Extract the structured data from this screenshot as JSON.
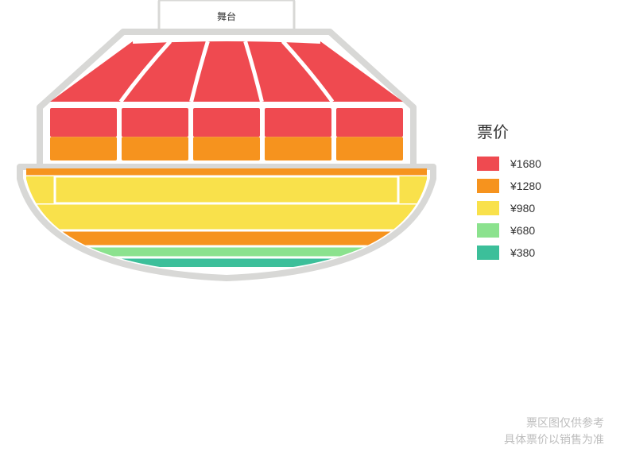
{
  "stage": {
    "label": "舞台"
  },
  "legend": {
    "title": "票价",
    "items": [
      {
        "color": "#ef4a50",
        "label": "¥1680"
      },
      {
        "color": "#f6931e",
        "label": "¥1280"
      },
      {
        "color": "#f9e14b",
        "label": "¥980"
      },
      {
        "color": "#8be28e",
        "label": "¥680"
      },
      {
        "color": "#3cbf9a",
        "label": "¥380"
      }
    ]
  },
  "seatmap": {
    "outline_color": "#d8d8d6",
    "gap_color": "#ffffff",
    "stage_fill": "#ffffff",
    "stage_border": "#d8d8d6",
    "stage_text_color": "#333333",
    "front_block": {
      "fill": "#ef4a50",
      "wedges": 5
    },
    "mid_blocks": {
      "top_fill": "#ef4a50",
      "bottom_fill": "#f6931e",
      "count": 5
    },
    "rear_bands": [
      {
        "fill": "#f6931e"
      },
      {
        "fill": "#f9e14b"
      },
      {
        "fill": "#f9e14b"
      },
      {
        "fill": "#f6931e"
      },
      {
        "fill": "#8be28e"
      },
      {
        "fill": "#3cbf9a"
      }
    ]
  },
  "disclaimer": {
    "line1": "票区图仅供参考",
    "line2": "具体票价以销售为准"
  }
}
